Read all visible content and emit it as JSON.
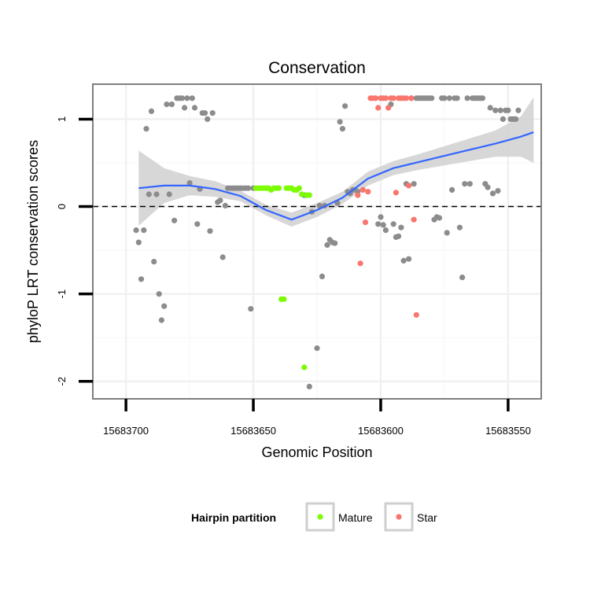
{
  "chart_data": {
    "type": "scatter",
    "title": "Conservation",
    "xlabel": "Genomic Position",
    "ylabel": "phyloP LRT conservation scores",
    "x_reversed": true,
    "xlim": [
      15683713,
      15683537
    ],
    "ylim": [
      -2.2,
      1.4
    ],
    "x_ticks": [
      15683700,
      15683650,
      15683600,
      15683550
    ],
    "x_tick_labels": [
      "15683700",
      "15683650",
      "15683600",
      "15683550"
    ],
    "y_ticks": [
      -2,
      -1,
      0,
      1
    ],
    "y_tick_labels": [
      "-2",
      "-1",
      "0",
      "1"
    ],
    "reference_line": {
      "y": 0,
      "style": "dashed",
      "color": "#000000"
    },
    "grid": true,
    "legend": {
      "title": "Hairpin partition",
      "position": "bottom",
      "entries": [
        {
          "label": "Mature",
          "color": "#7CFC00"
        },
        {
          "label": "Star",
          "color": "#F8766D"
        }
      ]
    },
    "colors": {
      "other": "#8C8C8C",
      "mature": "#7CFC00",
      "star": "#F8766D",
      "smooth": "#3366FF",
      "band": "#D3D3D3"
    },
    "smooth": {
      "method": "loess",
      "x": [
        15683695,
        15683685,
        15683675,
        15683665,
        15683655,
        15683645,
        15683635,
        15683625,
        15683615,
        15683605,
        15683595,
        15683585,
        15683575,
        15683565,
        15683555,
        15683545,
        15683540
      ],
      "y": [
        0.21,
        0.24,
        0.24,
        0.2,
        0.12,
        -0.04,
        -0.15,
        -0.04,
        0.1,
        0.32,
        0.44,
        0.51,
        0.58,
        0.65,
        0.72,
        0.8,
        0.85
      ],
      "lower": [
        -0.22,
        0.04,
        0.13,
        0.11,
        0.06,
        -0.1,
        -0.23,
        -0.12,
        0.03,
        0.24,
        0.36,
        0.42,
        0.47,
        0.52,
        0.57,
        0.57,
        0.5
      ],
      "upper": [
        0.64,
        0.44,
        0.35,
        0.29,
        0.18,
        0.02,
        -0.07,
        0.04,
        0.17,
        0.4,
        0.52,
        0.6,
        0.69,
        0.78,
        0.87,
        1.03,
        1.25
      ]
    },
    "series": [
      {
        "name": "Other",
        "points": [
          [
            15683696,
            -0.27
          ],
          [
            15683695,
            -0.41
          ],
          [
            15683694,
            -0.83
          ],
          [
            15683693,
            -0.27
          ],
          [
            15683692,
            0.89
          ],
          [
            15683691,
            0.14
          ],
          [
            15683690,
            1.09
          ],
          [
            15683689,
            -0.63
          ],
          [
            15683688,
            0.14
          ],
          [
            15683687,
            -1.0
          ],
          [
            15683686,
            -1.3
          ],
          [
            15683685,
            -1.14
          ],
          [
            15683684,
            1.17
          ],
          [
            15683683,
            0.14
          ],
          [
            15683682,
            1.17
          ],
          [
            15683681,
            -0.16
          ],
          [
            15683680,
            1.24
          ],
          [
            15683679,
            1.24
          ],
          [
            15683678,
            1.24
          ],
          [
            15683677,
            1.13
          ],
          [
            15683676,
            1.24
          ],
          [
            15683675,
            0.27
          ],
          [
            15683674,
            1.24
          ],
          [
            15683673,
            1.13
          ],
          [
            15683672,
            -0.2
          ],
          [
            15683671,
            0.2
          ],
          [
            15683670,
            1.07
          ],
          [
            15683669,
            1.07
          ],
          [
            15683668,
            1.0
          ],
          [
            15683667,
            -0.28
          ],
          [
            15683666,
            1.07
          ],
          [
            15683664,
            0.05
          ],
          [
            15683663,
            0.07
          ],
          [
            15683662,
            -0.58
          ],
          [
            15683661,
            0.01
          ],
          [
            15683660,
            0.21
          ],
          [
            15683659,
            0.21
          ],
          [
            15683658,
            0.21
          ],
          [
            15683657,
            0.21
          ],
          [
            15683656,
            0.21
          ],
          [
            15683655,
            0.21
          ],
          [
            15683654,
            0.21
          ],
          [
            15683653,
            0.21
          ],
          [
            15683652,
            0.21
          ],
          [
            15683651,
            -1.17
          ],
          [
            15683650,
            0.21
          ],
          [
            15683630,
            0.13
          ],
          [
            15683629,
            0.13
          ],
          [
            15683628,
            -2.06
          ],
          [
            15683627,
            -0.06
          ],
          [
            15683625,
            -1.62
          ],
          [
            15683624,
            0.01
          ],
          [
            15683623,
            -0.8
          ],
          [
            15683622,
            0.01
          ],
          [
            15683621,
            -0.44
          ],
          [
            15683620,
            -0.38
          ],
          [
            15683619,
            -0.41
          ],
          [
            15683618,
            -0.42
          ],
          [
            15683617,
            0.04
          ],
          [
            15683616,
            0.97
          ],
          [
            15683615,
            0.89
          ],
          [
            15683614,
            1.15
          ],
          [
            15683613,
            0.17
          ],
          [
            15683612,
            0.15
          ],
          [
            15683611,
            0.19
          ],
          [
            15683610,
            0.19
          ],
          [
            15683609,
            0.17
          ],
          [
            15683601,
            -0.2
          ],
          [
            15683600,
            -0.12
          ],
          [
            15683599,
            -0.21
          ],
          [
            15683598,
            -0.27
          ],
          [
            15683597,
            1.13
          ],
          [
            15683596,
            1.17
          ],
          [
            15683595,
            -0.2
          ],
          [
            15683594,
            -0.35
          ],
          [
            15683593,
            -0.34
          ],
          [
            15683592,
            -0.24
          ],
          [
            15683591,
            -0.62
          ],
          [
            15683590,
            0.26
          ],
          [
            15683589,
            -0.6
          ],
          [
            15683588,
            1.24
          ],
          [
            15683587,
            0.26
          ],
          [
            15683586,
            1.24
          ],
          [
            15683585,
            1.24
          ],
          [
            15683584,
            1.24
          ],
          [
            15683583,
            1.24
          ],
          [
            15683582,
            1.24
          ],
          [
            15683581,
            1.24
          ],
          [
            15683580,
            1.24
          ],
          [
            15683579,
            -0.15
          ],
          [
            15683578,
            -0.12
          ],
          [
            15683577,
            -0.13
          ],
          [
            15683576,
            1.24
          ],
          [
            15683575,
            1.24
          ],
          [
            15683574,
            -0.3
          ],
          [
            15683573,
            1.24
          ],
          [
            15683572,
            0.19
          ],
          [
            15683571,
            1.24
          ],
          [
            15683570,
            1.24
          ],
          [
            15683569,
            -0.24
          ],
          [
            15683568,
            -0.81
          ],
          [
            15683567,
            0.26
          ],
          [
            15683566,
            1.24
          ],
          [
            15683565,
            0.26
          ],
          [
            15683564,
            1.24
          ],
          [
            15683563,
            1.24
          ],
          [
            15683562,
            1.24
          ],
          [
            15683561,
            1.24
          ],
          [
            15683560,
            1.24
          ],
          [
            15683559,
            0.26
          ],
          [
            15683558,
            0.22
          ],
          [
            15683557,
            1.13
          ],
          [
            15683556,
            0.15
          ],
          [
            15683555,
            1.1
          ],
          [
            15683554,
            0.18
          ],
          [
            15683553,
            1.1
          ],
          [
            15683552,
            1.0
          ],
          [
            15683551,
            1.1
          ],
          [
            15683550,
            1.1
          ],
          [
            15683549,
            1.0
          ],
          [
            15683548,
            1.0
          ],
          [
            15683547,
            1.0
          ],
          [
            15683546,
            1.1
          ]
        ]
      },
      {
        "name": "Mature",
        "points": [
          [
            15683649,
            0.21
          ],
          [
            15683648,
            0.21
          ],
          [
            15683647,
            0.21
          ],
          [
            15683646,
            0.21
          ],
          [
            15683645,
            0.21
          ],
          [
            15683644,
            0.21
          ],
          [
            15683643,
            0.19
          ],
          [
            15683642,
            0.21
          ],
          [
            15683641,
            0.21
          ],
          [
            15683640,
            0.21
          ],
          [
            15683639,
            -1.06
          ],
          [
            15683638,
            -1.06
          ],
          [
            15683637,
            0.21
          ],
          [
            15683636,
            0.21
          ],
          [
            15683635,
            0.21
          ],
          [
            15683634,
            0.19
          ],
          [
            15683633,
            0.19
          ],
          [
            15683632,
            0.21
          ],
          [
            15683631,
            0.14
          ],
          [
            15683630,
            -1.84
          ],
          [
            15683629,
            0.13
          ],
          [
            15683628,
            0.13
          ]
        ]
      },
      {
        "name": "Star",
        "points": [
          [
            15683609,
            0.13
          ],
          [
            15683608,
            -0.65
          ],
          [
            15683607,
            0.19
          ],
          [
            15683606,
            -0.18
          ],
          [
            15683605,
            0.17
          ],
          [
            15683604,
            1.24
          ],
          [
            15683603,
            1.24
          ],
          [
            15683602,
            1.24
          ],
          [
            15683601,
            1.13
          ],
          [
            15683600,
            1.24
          ],
          [
            15683599,
            1.24
          ],
          [
            15683598,
            1.24
          ],
          [
            15683597,
            1.13
          ],
          [
            15683596,
            1.24
          ],
          [
            15683595,
            1.24
          ],
          [
            15683594,
            0.16
          ],
          [
            15683593,
            1.24
          ],
          [
            15683592,
            1.24
          ],
          [
            15683591,
            1.24
          ],
          [
            15683590,
            1.24
          ],
          [
            15683589,
            0.24
          ],
          [
            15683588,
            1.24
          ],
          [
            15683587,
            -0.15
          ],
          [
            15683586,
            -1.24
          ]
        ]
      }
    ]
  }
}
